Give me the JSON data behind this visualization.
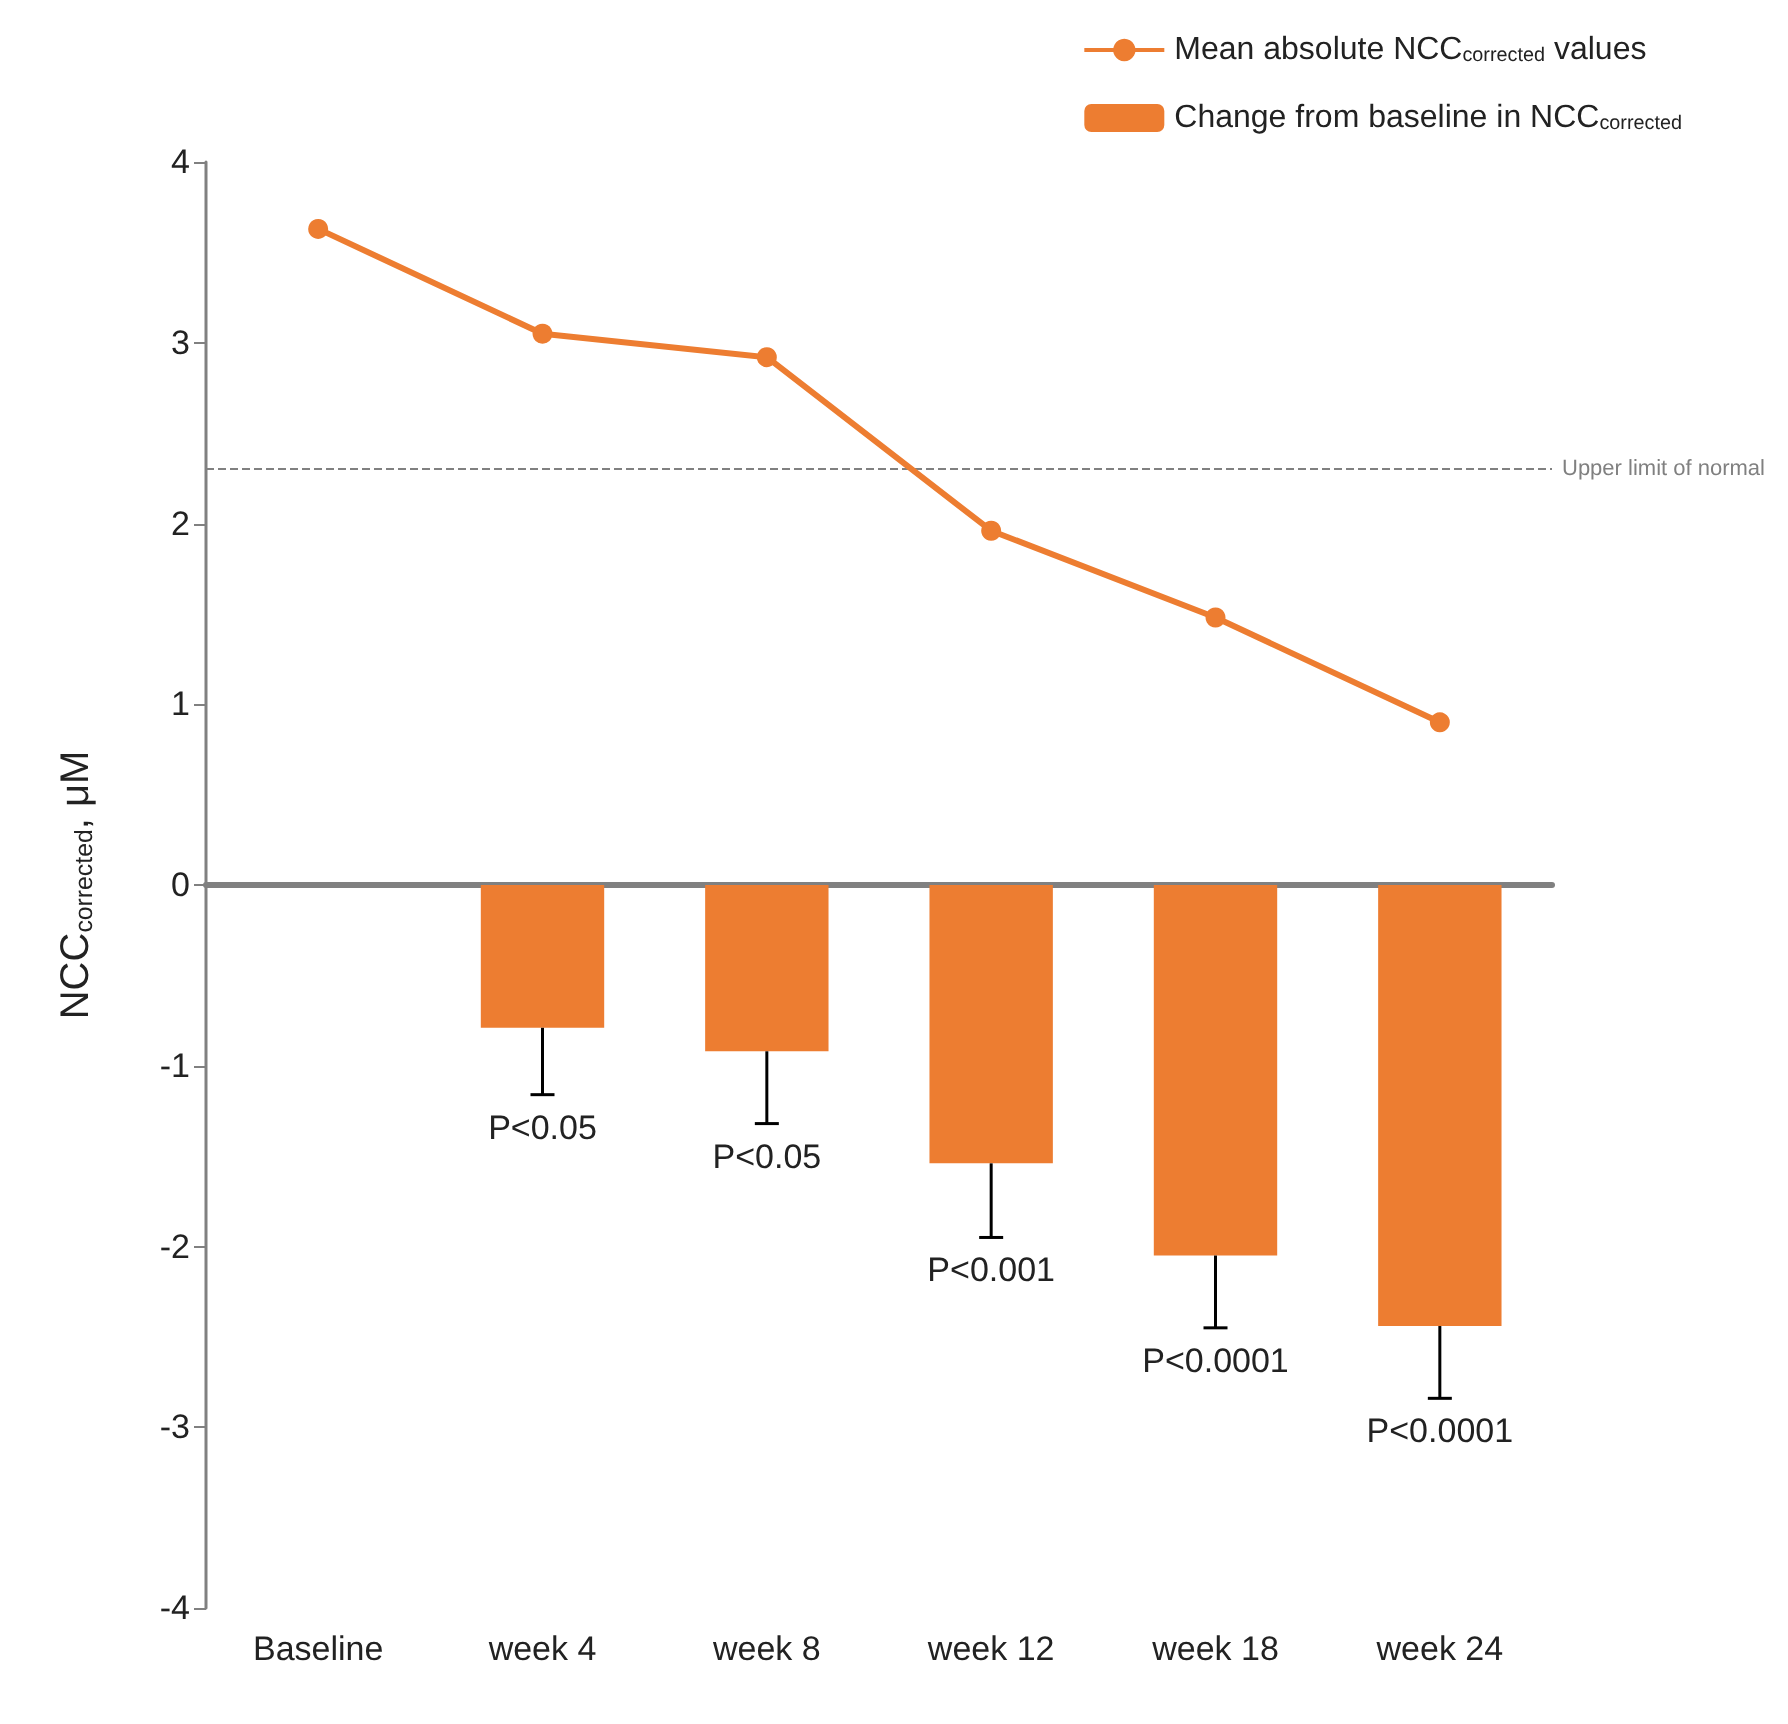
{
  "chart_data": {
    "type": "bar",
    "ylabel": "NCC$_{corrected}$, μM",
    "categories": [
      "Baseline",
      "week 4",
      "week 8",
      "week 12",
      "week 18",
      "week 24"
    ],
    "series": [
      {
        "name": "Mean absolute NCC$_{corrected}$ values",
        "type": "line",
        "color": "#ed7d31",
        "values": [
          3.63,
          3.05,
          2.92,
          1.96,
          1.48,
          0.9
        ]
      },
      {
        "name": "Change from baseline in NCC$_{corrected}$",
        "color": "#ed7d31",
        "values": [
          null,
          -0.79,
          -0.92,
          -1.54,
          -2.05,
          -2.44
        ],
        "errors": [
          null,
          [
            -1.16,
            -0.79
          ],
          [
            -1.32,
            -0.92
          ],
          [
            -1.95,
            -1.54
          ],
          [
            -2.45,
            -2.05
          ],
          [
            -2.84,
            -2.44
          ]
        ]
      }
    ],
    "ylim": [
      -4,
      4
    ],
    "yticks": [
      -4,
      -3,
      -2,
      -1,
      0,
      1,
      2,
      3,
      4
    ],
    "legend": "top right",
    "marker": "circle",
    "ref_lines": [
      {
        "axis": "y",
        "value": 2.3,
        "label": "Upper limit of normal",
        "color": "#808080",
        "line_style": "dashed"
      }
    ],
    "annotations": [
      {
        "text": "P<0.05",
        "x": "week 4",
        "y": -0.79
      },
      {
        "text": "P<0.05",
        "x": "week 8",
        "y": -0.92
      },
      {
        "text": "P<0.001",
        "x": "week 12",
        "y": -1.54
      },
      {
        "text": "P<0.0001",
        "x": "week 18",
        "y": -2.05
      },
      {
        "text": "P<0.0001",
        "x": "week 24",
        "y": -2.44
      }
    ]
  }
}
